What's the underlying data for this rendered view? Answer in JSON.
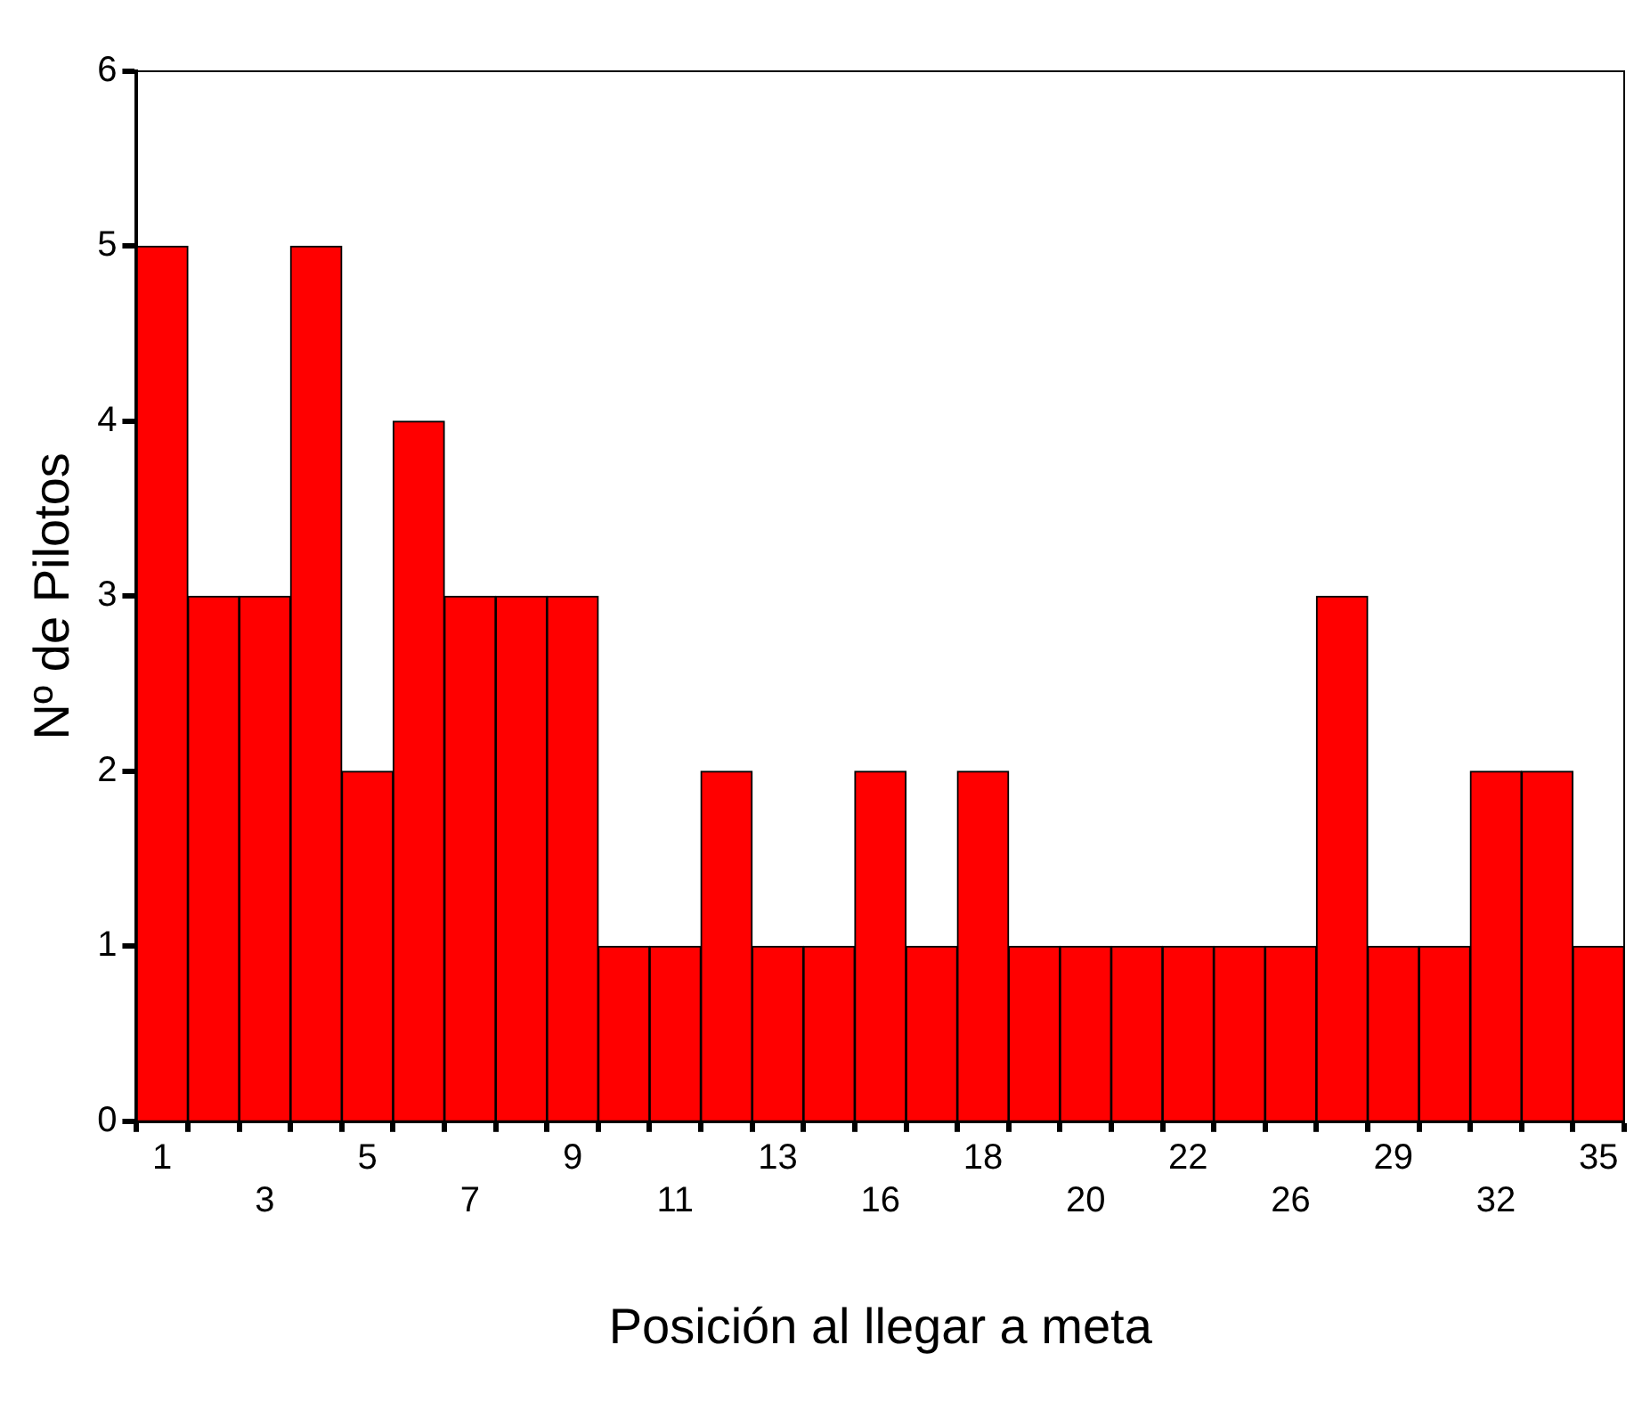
{
  "chart_data": {
    "type": "bar",
    "xlabel": "Posición al llegar a meta",
    "ylabel": "Nº de Pilotos",
    "categories": [
      "1",
      null,
      "3",
      null,
      "5",
      null,
      "7",
      null,
      "9",
      null,
      "11",
      null,
      "13",
      null,
      "16",
      null,
      "18",
      null,
      "20",
      null,
      "22",
      null,
      "26",
      null,
      "29",
      null,
      "32",
      null,
      "35"
    ],
    "values": [
      5,
      3,
      3,
      5,
      2,
      4,
      3,
      3,
      3,
      1,
      1,
      2,
      1,
      1,
      2,
      1,
      2,
      1,
      1,
      1,
      1,
      1,
      1,
      3,
      1,
      1,
      2,
      2,
      1
    ],
    "color": "#ff0000",
    "ylim": [
      0,
      6
    ],
    "yticks": [
      0,
      1,
      2,
      3,
      4,
      5,
      6
    ],
    "grid": false,
    "legend": false
  }
}
